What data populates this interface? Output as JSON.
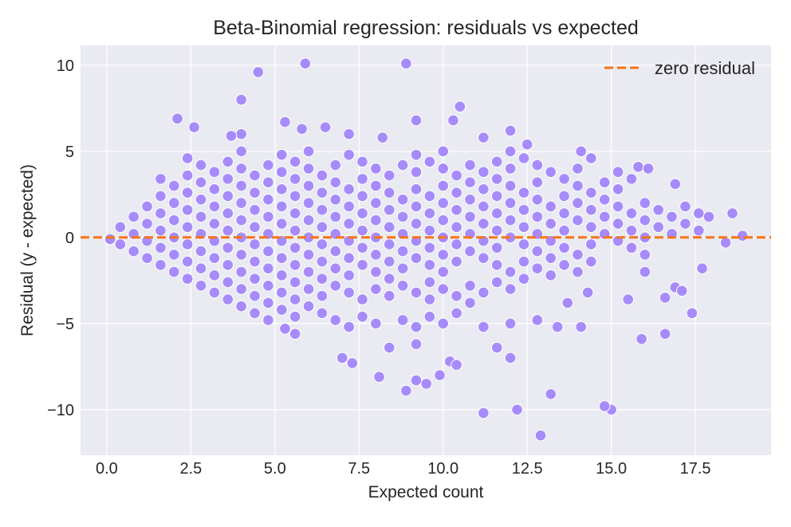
{
  "chart_data": {
    "type": "scatter",
    "title": "Beta-Binomial regression: residuals vs expected",
    "xlabel": "Expected count",
    "ylabel": "Residual (y - expected)",
    "xlim": [
      -0.78,
      19.75
    ],
    "ylim": [
      -12.65,
      11.15
    ],
    "xticks": [
      0,
      2.5,
      5,
      7.5,
      10,
      12.5,
      15,
      17.5
    ],
    "xtick_labels": [
      "0.0",
      "2.5",
      "5.0",
      "7.5",
      "10.0",
      "12.5",
      "15.0",
      "17.5"
    ],
    "yticks": [
      10,
      5,
      0,
      -5,
      -10
    ],
    "ytick_labels": [
      "10",
      "5",
      "0",
      "−5",
      "−10"
    ],
    "grid": true,
    "legend": {
      "position": "top-right",
      "entries": [
        {
          "label": "zero residual",
          "style": "dashed-line"
        }
      ]
    },
    "reference_line": {
      "y": 0,
      "color": "#f97316",
      "style": "dashed"
    },
    "colors": {
      "point": "#a78bfa",
      "point_edge": "#ffffff",
      "background": "#eaeaf2",
      "grid": "#ffffff"
    },
    "series_grouped": [
      {
        "x": 0.1,
        "r": [
          -0.1
        ]
      },
      {
        "x": 0.4,
        "r": [
          0.6,
          -0.4
        ]
      },
      {
        "x": 0.8,
        "r": [
          1.2,
          0.2,
          -0.8
        ]
      },
      {
        "x": 1.2,
        "r": [
          1.8,
          0.8,
          -0.2,
          -1.2
        ]
      },
      {
        "x": 1.6,
        "r": [
          3.4,
          2.4,
          1.4,
          0.4,
          -0.6,
          -1.6
        ]
      },
      {
        "x": 2.0,
        "r": [
          3.0,
          2.0,
          1.0,
          0.0,
          -1.0,
          -2.0
        ]
      },
      {
        "x": 2.4,
        "r": [
          4.6,
          3.6,
          2.6,
          1.6,
          0.6,
          -0.4,
          -1.4,
          -2.4
        ]
      },
      {
        "x": 2.8,
        "r": [
          4.2,
          3.2,
          2.2,
          1.2,
          0.2,
          -0.8,
          -1.8,
          -2.8
        ]
      },
      {
        "x": 3.2,
        "r": [
          3.8,
          2.8,
          1.8,
          0.8,
          -0.2,
          -1.2,
          -2.2,
          -3.2
        ]
      },
      {
        "x": 3.6,
        "r": [
          4.4,
          3.4,
          2.4,
          1.4,
          0.4,
          -0.6,
          -1.6,
          -2.6,
          -3.6
        ]
      },
      {
        "x": 4.0,
        "r": [
          5.0,
          4.0,
          3.0,
          2.0,
          1.0,
          0.0,
          -1.0,
          -2.0,
          -3.0,
          -4.0
        ]
      },
      {
        "x": 4.4,
        "r": [
          3.6,
          2.6,
          1.6,
          0.6,
          -0.4,
          -1.4,
          -2.4,
          -3.4,
          -4.4
        ]
      },
      {
        "x": 4.8,
        "r": [
          4.2,
          3.2,
          2.2,
          1.2,
          0.2,
          -0.8,
          -1.8,
          -2.8,
          -3.8
        ]
      },
      {
        "x": 5.2,
        "r": [
          4.8,
          3.8,
          2.8,
          1.8,
          0.8,
          -0.2,
          -1.2,
          -2.2,
          -3.2,
          -4.2
        ]
      },
      {
        "x": 5.6,
        "r": [
          4.4,
          3.4,
          2.4,
          1.4,
          0.4,
          -0.6,
          -1.6,
          -2.6,
          -3.6,
          -4.6
        ]
      },
      {
        "x": 6.0,
        "r": [
          5.0,
          4.0,
          3.0,
          2.0,
          1.0,
          0.0,
          -1.0,
          -2.0,
          -3.0,
          -4.0
        ]
      },
      {
        "x": 6.4,
        "r": [
          3.6,
          2.6,
          1.6,
          0.6,
          -0.4,
          -1.4,
          -2.4,
          -3.4,
          -4.4
        ]
      },
      {
        "x": 6.8,
        "r": [
          4.2,
          3.2,
          2.2,
          1.2,
          0.2,
          -0.8,
          -1.8,
          -2.8,
          -4.8
        ]
      },
      {
        "x": 7.2,
        "r": [
          4.8,
          2.8,
          1.8,
          0.8,
          -0.2,
          -1.2,
          -2.2,
          -3.2,
          -5.2
        ]
      },
      {
        "x": 7.6,
        "r": [
          4.4,
          3.4,
          2.4,
          1.4,
          0.4,
          -0.6,
          -1.6,
          -3.6,
          -4.6
        ]
      },
      {
        "x": 8.0,
        "r": [
          4.0,
          3.0,
          2.0,
          1.0,
          0.0,
          -1.0,
          -2.0,
          -3.0,
          -5.0
        ]
      },
      {
        "x": 8.4,
        "r": [
          3.6,
          2.6,
          1.6,
          0.6,
          -0.4,
          -1.4,
          -2.4,
          -3.4,
          -6.4
        ]
      },
      {
        "x": 8.8,
        "r": [
          4.2,
          2.2,
          1.2,
          0.2,
          -0.8,
          -1.8,
          -2.8,
          -4.8
        ]
      },
      {
        "x": 9.2,
        "r": [
          4.8,
          3.8,
          2.8,
          1.8,
          0.8,
          -0.2,
          -1.2,
          -3.2,
          -5.2,
          -6.2
        ]
      },
      {
        "x": 9.6,
        "r": [
          4.4,
          2.4,
          1.4,
          0.4,
          -0.6,
          -1.6,
          -2.6,
          -3.6,
          -4.6
        ]
      },
      {
        "x": 10.0,
        "r": [
          5.0,
          4.0,
          3.0,
          2.0,
          1.0,
          0.0,
          -1.0,
          -2.0,
          -3.0,
          -5.0
        ]
      },
      {
        "x": 10.4,
        "r": [
          3.6,
          2.6,
          1.6,
          0.6,
          -0.4,
          -1.4,
          -3.4,
          -4.4
        ]
      },
      {
        "x": 10.8,
        "r": [
          4.2,
          3.2,
          2.2,
          1.2,
          0.2,
          -0.8,
          -2.8,
          -3.8
        ]
      },
      {
        "x": 11.2,
        "r": [
          5.8,
          3.8,
          2.8,
          1.8,
          0.8,
          -0.2,
          -1.2,
          -3.2
        ]
      },
      {
        "x": 11.6,
        "r": [
          4.4,
          3.4,
          2.4,
          1.4,
          0.4,
          -0.6,
          -1.6,
          -2.6,
          -6.4
        ]
      },
      {
        "x": 12.0,
        "r": [
          5.0,
          4.0,
          3.0,
          2.0,
          1.0,
          0.0,
          -2.0,
          -3.0,
          -5.0
        ]
      },
      {
        "x": 12.4,
        "r": [
          4.6,
          2.6,
          1.6,
          0.6,
          -0.4,
          -1.4,
          -2.4
        ]
      },
      {
        "x": 12.8,
        "r": [
          4.2,
          3.2,
          2.2,
          1.2,
          0.2,
          -0.8,
          -1.8,
          -4.8
        ]
      },
      {
        "x": 13.2,
        "r": [
          3.8,
          1.8,
          0.8,
          -0.2,
          -1.2,
          -2.2
        ]
      },
      {
        "x": 13.6,
        "r": [
          3.4,
          2.4,
          1.4,
          0.4,
          -0.6,
          -1.6
        ]
      },
      {
        "x": 14.0,
        "r": [
          4.0,
          3.0,
          2.0,
          1.0,
          -1.0,
          -2.0
        ]
      },
      {
        "x": 14.4,
        "r": [
          4.6,
          2.6,
          1.6,
          0.6,
          -0.4,
          -1.4
        ]
      },
      {
        "x": 14.8,
        "r": [
          3.2,
          2.2,
          1.2,
          0.2
        ]
      },
      {
        "x": 15.2,
        "r": [
          3.8,
          2.8,
          1.8,
          0.8,
          -0.2
        ]
      },
      {
        "x": 15.6,
        "r": [
          3.4,
          1.4,
          0.4,
          -0.6
        ]
      },
      {
        "x": 16.0,
        "r": [
          2.0,
          1.0,
          0.0,
          -1.0,
          -2.0
        ]
      },
      {
        "x": 16.4,
        "r": [
          1.6,
          0.6
        ]
      },
      {
        "x": 16.8,
        "r": [
          1.2,
          0.2
        ]
      },
      {
        "x": 17.2,
        "r": [
          0.8,
          1.8
        ]
      },
      {
        "x": 17.6,
        "r": [
          1.4,
          0.4
        ]
      },
      {
        "x": 17.9,
        "r": [
          1.2
        ]
      }
    ],
    "outliers": [
      [
        5.9,
        10.1
      ],
      [
        8.9,
        10.1
      ],
      [
        4.5,
        9.6
      ],
      [
        4.0,
        8.0
      ],
      [
        2.1,
        6.9
      ],
      [
        2.6,
        6.4
      ],
      [
        10.5,
        7.6
      ],
      [
        9.2,
        6.8
      ],
      [
        10.3,
        6.8
      ],
      [
        5.3,
        6.7
      ],
      [
        5.8,
        6.3
      ],
      [
        6.5,
        6.4
      ],
      [
        7.2,
        6.0
      ],
      [
        8.2,
        5.8
      ],
      [
        12.0,
        6.2
      ],
      [
        12.5,
        5.4
      ],
      [
        4.0,
        6.0
      ],
      [
        3.7,
        5.9
      ],
      [
        14.1,
        5.0
      ],
      [
        15.8,
        4.1
      ],
      [
        16.1,
        4.0
      ],
      [
        16.9,
        3.1
      ],
      [
        18.6,
        1.4
      ],
      [
        18.9,
        0.1
      ],
      [
        18.4,
        -0.3
      ],
      [
        17.7,
        -1.8
      ],
      [
        17.4,
        -4.4
      ],
      [
        16.6,
        -5.6
      ],
      [
        15.9,
        -5.9
      ],
      [
        15.0,
        -10.0
      ],
      [
        14.8,
        -9.8
      ],
      [
        13.2,
        -9.1
      ],
      [
        12.9,
        -11.5
      ],
      [
        12.2,
        -10.0
      ],
      [
        11.2,
        -10.2
      ],
      [
        8.9,
        -8.9
      ],
      [
        9.5,
        -8.5
      ],
      [
        9.2,
        -8.3
      ],
      [
        9.9,
        -8.0
      ],
      [
        8.1,
        -8.1
      ],
      [
        7.3,
        -7.3
      ],
      [
        7.0,
        -7.0
      ],
      [
        10.2,
        -7.2
      ],
      [
        10.4,
        -7.4
      ],
      [
        12.0,
        -7.0
      ],
      [
        13.4,
        -5.2
      ],
      [
        14.1,
        -5.2
      ],
      [
        11.2,
        -5.2
      ],
      [
        5.3,
        -5.3
      ],
      [
        5.6,
        -5.6
      ],
      [
        4.8,
        -4.8
      ],
      [
        16.9,
        -2.9
      ],
      [
        17.1,
        -3.1
      ],
      [
        16.6,
        -3.5
      ],
      [
        15.5,
        -3.6
      ],
      [
        14.3,
        -3.2
      ],
      [
        13.7,
        -3.8
      ]
    ]
  }
}
